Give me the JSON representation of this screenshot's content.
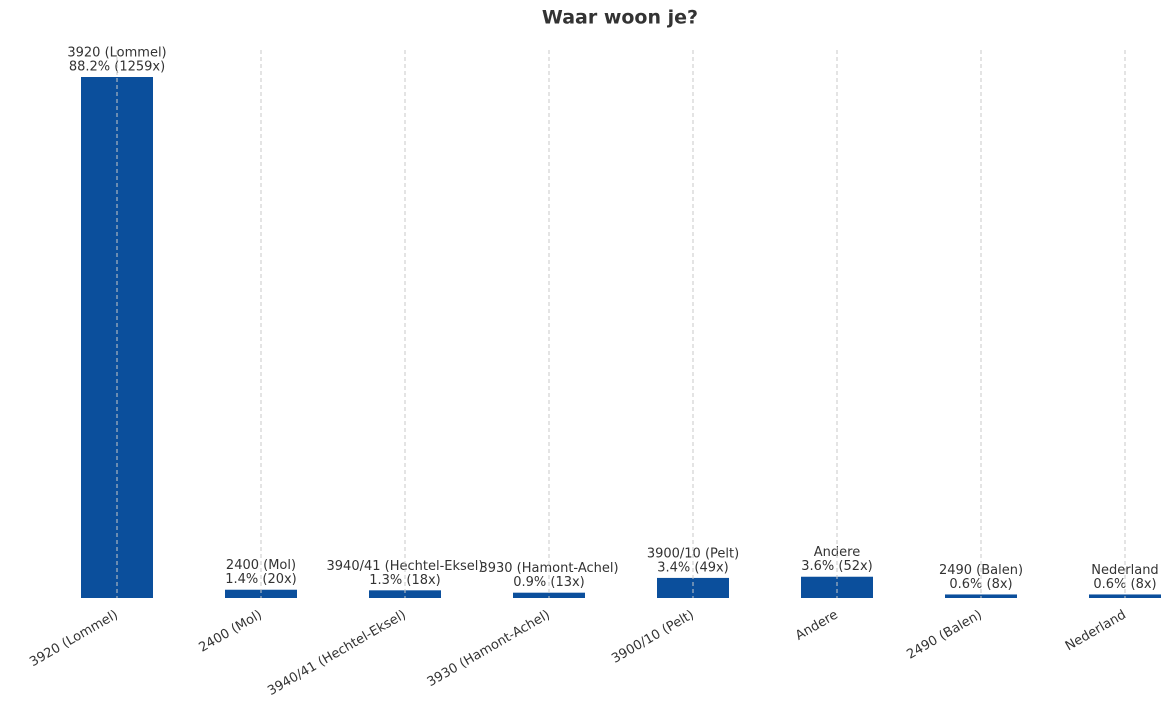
{
  "chart_data": {
    "type": "bar",
    "title": "Waar woon je?",
    "categories": [
      "3920 (Lommel)",
      "2400 (Mol)",
      "3940/41 (Hechtel-Eksel)",
      "3930 (Hamont-Achel)",
      "3900/10 (Pelt)",
      "Andere",
      "2490 (Balen)",
      "Nederland"
    ],
    "values": [
      88.2,
      1.4,
      1.3,
      0.9,
      3.4,
      3.6,
      0.6,
      0.6
    ],
    "value_labels": [
      "88.2% (1259x)",
      "1.4% (20x)",
      "1.3% (18x)",
      "0.9% (13x)",
      "3.4% (49x)",
      "3.6% (52x)",
      "0.6% (8x)",
      "0.6% (8x)"
    ],
    "color": "#0b4f9c",
    "grid": true
  }
}
